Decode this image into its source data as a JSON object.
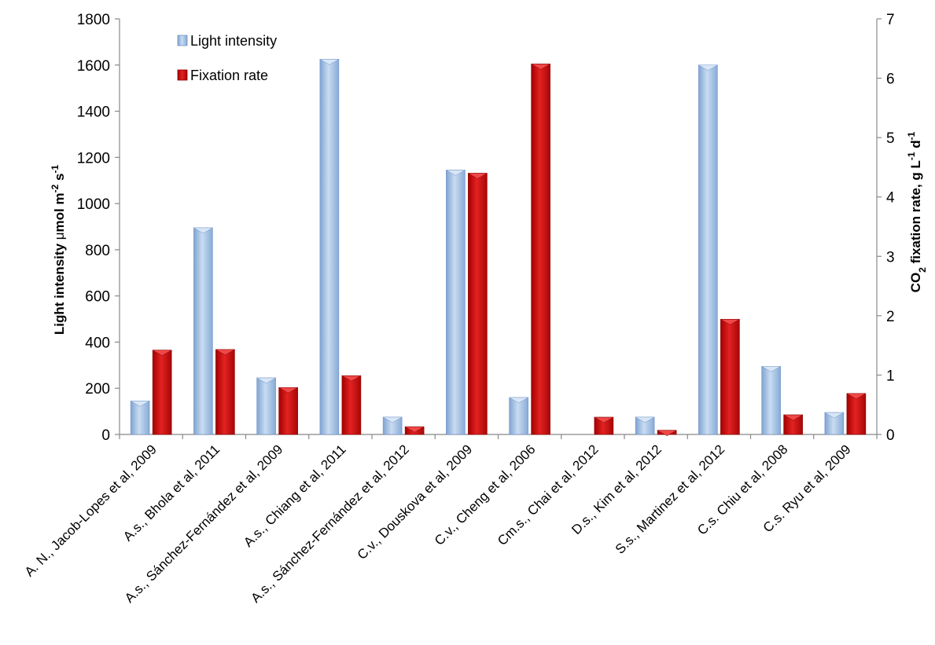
{
  "chart_data": {
    "type": "bar",
    "categories": [
      "A. N., Jacob-Lopes et al, 2009",
      "A.s., Bhola et al, 2011",
      "A.s., Sánchez-Fernández  et al, 2009",
      "A.s., Chiang et al, 2011",
      "A.s., Sánchez-Fernández  et al, 2012",
      "C.v., Douskova et al, 2009",
      "C.v., Cheng et al, 2006",
      "Cm.s., Chai et al, 2012",
      "D.s., Kim et al, 2012",
      "S.s., Martinez et al, 2012",
      "C.s. Chiu et al, 2008",
      "C.s. Ryu et al, 2009"
    ],
    "series": [
      {
        "name": "Light intensity",
        "axis": "left",
        "color": "#9dbde3",
        "values": [
          145,
          895,
          245,
          1625,
          75,
          1145,
          160,
          0,
          75,
          1600,
          295,
          95
        ]
      },
      {
        "name": "Fixation rate",
        "axis": "right",
        "color": "#cc1111",
        "values": [
          1.42,
          1.43,
          0.79,
          0.99,
          0.13,
          4.4,
          6.24,
          0.29,
          0.07,
          1.94,
          0.33,
          0.69
        ]
      }
    ],
    "y_left": {
      "label_main": "Light intensity ",
      "label_mu": "μ",
      "label_unit": "mol m",
      "label_sup1": "-2",
      "label_s": " s",
      "label_sup2": "-1",
      "ylim": [
        0,
        1800
      ],
      "ticks": [
        "0",
        "200",
        "400",
        "600",
        "800",
        "1000",
        "1200",
        "1400",
        "1600",
        "1800"
      ]
    },
    "y_right": {
      "label_co": "CO",
      "label_sub": "2",
      "label_mid": " fixation rate, g L",
      "label_sup1": "-1",
      "label_d": " d",
      "label_sup2": "-1",
      "ylim": [
        0,
        7
      ],
      "ticks": [
        "0",
        "1",
        "2",
        "3",
        "4",
        "5",
        "6",
        "7"
      ]
    },
    "grid": false,
    "legend_position": "top-left"
  }
}
